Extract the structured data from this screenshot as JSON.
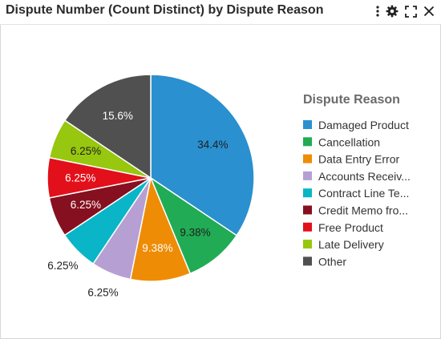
{
  "header": {
    "title": "Dispute Number (Count Distinct) by Dispute Reason",
    "icons": [
      "more-vertical-icon",
      "gear-icon",
      "expand-icon",
      "close-icon"
    ]
  },
  "chart_data": {
    "type": "pie",
    "title": "Dispute Number (Count Distinct) by Dispute Reason",
    "legend_title": "Dispute Reason",
    "legend_position": "right",
    "slices": [
      {
        "name": "Damaged Product",
        "value": 34.4,
        "label": "34.4%",
        "color": "#2a90cf"
      },
      {
        "name": "Cancellation",
        "value": 9.38,
        "label": "9.38%",
        "color": "#21ab55"
      },
      {
        "name": "Data Entry Error",
        "value": 9.38,
        "label": "9.38%",
        "color": "#ee8c06"
      },
      {
        "name": "Accounts Receiv...",
        "value": 6.25,
        "label": "6.25%",
        "color": "#b69fd2"
      },
      {
        "name": "Contract Line Te...",
        "value": 6.25,
        "label": "6.25%",
        "color": "#0ab5c7"
      },
      {
        "name": "Credit Memo fro...",
        "value": 6.25,
        "label": "6.25%",
        "color": "#86101f"
      },
      {
        "name": "Free Product",
        "value": 6.25,
        "label": "6.25%",
        "color": "#e2101a"
      },
      {
        "name": "Late Delivery",
        "value": 6.25,
        "label": "6.25%",
        "color": "#97c70e"
      },
      {
        "name": "Other",
        "value": 15.6,
        "label": "15.6%",
        "color": "#505050"
      }
    ]
  }
}
